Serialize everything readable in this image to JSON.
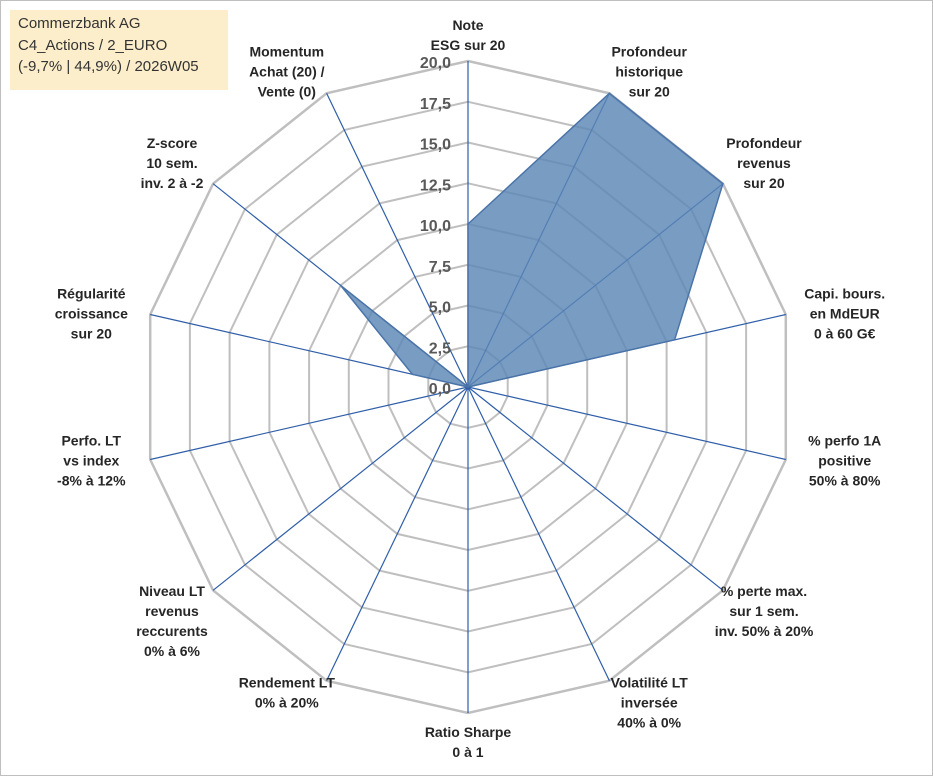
{
  "header": {
    "line1": "Commerzbank AG",
    "line2": "C4_Actions / 2_EURO",
    "line3": "(-9,7% | 44,9%) / 2026W05"
  },
  "colors": {
    "fill": "#5b86b6",
    "stroke": "#4a74a8",
    "grid": "#bfbfbf",
    "spoke": "#2f5ea8",
    "header_bg": "#fdeecb"
  },
  "chart_data": {
    "type": "radar",
    "rmin": 0,
    "rmax": 20,
    "ticks": [
      "0,0",
      "2,5",
      "5,0",
      "7,5",
      "10,0",
      "12,5",
      "15,0",
      "17,5",
      "20,0"
    ],
    "axes": [
      {
        "label": [
          "Note",
          "ESG sur 20"
        ],
        "value": 10
      },
      {
        "label": [
          "Profondeur",
          "historique",
          "sur 20"
        ],
        "value": 20
      },
      {
        "label": [
          "Profondeur",
          "revenus",
          "sur 20"
        ],
        "value": 20
      },
      {
        "label": [
          "Capi. bours.",
          "en MdEUR",
          "0 à 60 G€"
        ],
        "value": 13
      },
      {
        "label": [
          "% perfo 1A",
          "positive",
          "50% à 80%"
        ],
        "value": 0
      },
      {
        "label": [
          "% perte max.",
          "sur 1 sem.",
          "inv. 50% à 20%"
        ],
        "value": 0
      },
      {
        "label": [
          "Volatilité LT",
          "inversée",
          "40% à 0%"
        ],
        "value": 0
      },
      {
        "label": [
          "Ratio Sharpe",
          "0 à 1"
        ],
        "value": 0
      },
      {
        "label": [
          "Rendement LT",
          "0% à 20%"
        ],
        "value": 0
      },
      {
        "label": [
          "Niveau LT",
          "revenus",
          "reccurents",
          "0% à 6%"
        ],
        "value": 0
      },
      {
        "label": [
          "Perfo. LT",
          "vs index",
          "-8% à 12%"
        ],
        "value": 0
      },
      {
        "label": [
          "Régularité",
          "croissance",
          "sur 20"
        ],
        "value": 3.5
      },
      {
        "label": [
          "Z-score",
          "10 sem.",
          "inv. 2 à -2"
        ],
        "value": 10
      },
      {
        "label": [
          "Momentum",
          "Achat (20) /",
          "Vente (0)"
        ],
        "value": 0
      }
    ]
  }
}
